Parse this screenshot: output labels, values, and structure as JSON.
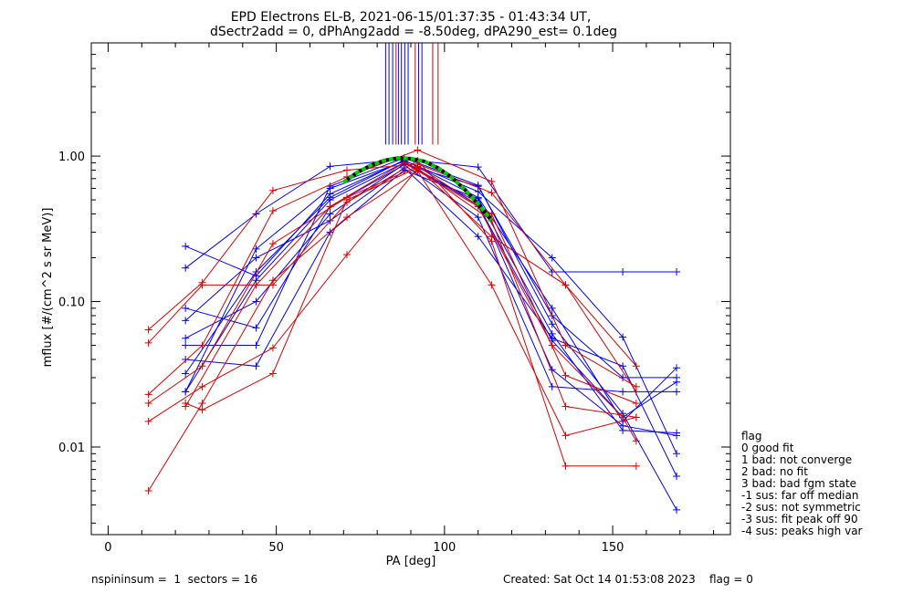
{
  "chart_data": {
    "type": "scatter",
    "title_line1": "EPD Electrons EL-B, 2021-06-15/01:37:35 - 01:43:34 UT,",
    "title_line2": "dSectr2add = 0, dPhAng2add = -8.50deg, dPA290_est=   0.1deg",
    "xlabel": "PA [deg]",
    "ylabel": "mflux [#/(cm^2 s sr MeV)]",
    "xlim": [
      -5,
      185
    ],
    "ylim": [
      0.0025,
      6.0
    ],
    "y_scale": "log",
    "x_ticks": [
      0,
      50,
      100,
      150
    ],
    "x_tick_labels": [
      "0",
      "50",
      "100",
      "150"
    ],
    "y_ticks": [
      0.01,
      0.1,
      1.0
    ],
    "y_tick_labels": [
      "0.01",
      "0.10",
      "1.00"
    ],
    "colors": {
      "blue": "#0000ff",
      "red": "#dd0000",
      "fit_green": "#00cc00",
      "fit_black": "#000000"
    },
    "series": [
      {
        "color": "blue",
        "points": [
          [
            23,
            0.032
          ],
          [
            44,
            0.16
          ],
          [
            66,
            0.52
          ],
          [
            88,
            0.94
          ],
          [
            110,
            0.52
          ],
          [
            132,
            0.09
          ],
          [
            153,
            0.015
          ],
          [
            169,
            0.035
          ]
        ]
      },
      {
        "color": "blue",
        "points": [
          [
            23,
            0.024
          ],
          [
            44,
            0.23
          ],
          [
            66,
            0.6
          ],
          [
            88,
            0.92
          ],
          [
            110,
            0.46
          ],
          [
            132,
            0.054
          ],
          [
            153,
            0.016
          ],
          [
            169,
            0.028
          ]
        ]
      },
      {
        "color": "blue",
        "points": [
          [
            23,
            0.024
          ],
          [
            44,
            0.14
          ],
          [
            66,
            0.5
          ],
          [
            88,
            0.9
          ],
          [
            110,
            0.48
          ],
          [
            132,
            0.034
          ],
          [
            153,
            0.014
          ],
          [
            169,
            0.012
          ]
        ]
      },
      {
        "color": "blue",
        "points": [
          [
            23,
            0.17
          ],
          [
            44,
            0.4
          ],
          [
            66,
            0.85
          ],
          [
            88,
            0.95
          ],
          [
            110,
            0.84
          ],
          [
            132,
            0.16
          ],
          [
            153,
            0.16
          ],
          [
            169,
            0.16
          ]
        ]
      },
      {
        "color": "blue",
        "points": [
          [
            23,
            0.24
          ],
          [
            44,
            0.15
          ],
          [
            66,
            0.55
          ],
          [
            88,
            0.93
          ],
          [
            110,
            0.57
          ],
          [
            132,
            0.2
          ],
          [
            153,
            0.057
          ],
          [
            169,
            0.009
          ]
        ]
      },
      {
        "color": "blue",
        "points": [
          [
            23,
            0.09
          ],
          [
            44,
            0.066
          ],
          [
            66,
            0.45
          ],
          [
            88,
            0.87
          ],
          [
            110,
            0.38
          ],
          [
            132,
            0.026
          ],
          [
            153,
            0.024
          ],
          [
            169,
            0.024
          ]
        ]
      },
      {
        "color": "blue",
        "points": [
          [
            23,
            0.074
          ],
          [
            44,
            0.2
          ],
          [
            66,
            0.36
          ],
          [
            88,
            0.83
          ],
          [
            110,
            0.28
          ],
          [
            132,
            0.056
          ],
          [
            153,
            0.036
          ],
          [
            169,
            0.0063
          ]
        ]
      },
      {
        "color": "blue",
        "points": [
          [
            23,
            0.05
          ],
          [
            44,
            0.05
          ],
          [
            66,
            0.62
          ],
          [
            88,
            0.97
          ],
          [
            110,
            0.63
          ],
          [
            132,
            0.07
          ],
          [
            153,
            0.017
          ],
          [
            169,
            0.0037
          ]
        ]
      },
      {
        "color": "blue",
        "points": [
          [
            23,
            0.04
          ],
          [
            44,
            0.036
          ],
          [
            66,
            0.3
          ],
          [
            88,
            0.8
          ],
          [
            110,
            0.51
          ],
          [
            132,
            0.06
          ],
          [
            153,
            0.013
          ],
          [
            169,
            0.0125
          ]
        ]
      },
      {
        "color": "blue",
        "points": [
          [
            23,
            0.056
          ],
          [
            44,
            0.1
          ],
          [
            66,
            0.4
          ],
          [
            88,
            0.88
          ],
          [
            110,
            0.62
          ],
          [
            132,
            0.08
          ],
          [
            153,
            0.03
          ],
          [
            169,
            0.03
          ]
        ]
      },
      {
        "color": "red",
        "points": [
          [
            12,
            0.064
          ],
          [
            28,
            0.135
          ],
          [
            49,
            0.58
          ],
          [
            71,
            0.8
          ],
          [
            92,
            0.88
          ],
          [
            114,
            0.56
          ],
          [
            136,
            0.13
          ],
          [
            157,
            0.036
          ]
        ]
      },
      {
        "color": "red",
        "points": [
          [
            12,
            0.052
          ],
          [
            28,
            0.13
          ],
          [
            49,
            0.13
          ],
          [
            71,
            0.48
          ],
          [
            92,
            0.93
          ],
          [
            114,
            0.26
          ],
          [
            136,
            0.0074
          ],
          [
            157,
            0.0074
          ]
        ]
      },
      {
        "color": "red",
        "points": [
          [
            12,
            0.023
          ],
          [
            28,
            0.05
          ],
          [
            49,
            0.42
          ],
          [
            71,
            0.72
          ],
          [
            92,
            1.1
          ],
          [
            114,
            0.67
          ],
          [
            136,
            0.05
          ],
          [
            157,
            0.026
          ]
        ]
      },
      {
        "color": "red",
        "points": [
          [
            12,
            0.02
          ],
          [
            28,
            0.036
          ],
          [
            49,
            0.25
          ],
          [
            71,
            0.52
          ],
          [
            92,
            0.85
          ],
          [
            114,
            0.4
          ],
          [
            136,
            0.031
          ],
          [
            157,
            0.02
          ]
        ]
      },
      {
        "color": "red",
        "points": [
          [
            12,
            0.005
          ],
          [
            28,
            0.02
          ],
          [
            49,
            0.14
          ],
          [
            71,
            0.38
          ],
          [
            92,
            0.79
          ],
          [
            114,
            0.13
          ],
          [
            136,
            0.012
          ],
          [
            157,
            0.016
          ]
        ]
      },
      {
        "color": "red",
        "points": [
          [
            12,
            0.015
          ],
          [
            28,
            0.026
          ],
          [
            49,
            0.048
          ],
          [
            71,
            0.21
          ],
          [
            92,
            0.82
          ],
          [
            114,
            0.36
          ],
          [
            136,
            0.019
          ],
          [
            157,
            0.016
          ]
        ]
      },
      {
        "color": "red",
        "points": [
          [
            23,
            0.019
          ],
          [
            44,
            0.13
          ],
          [
            66,
            0.45
          ],
          [
            88,
            0.9
          ],
          [
            110,
            0.45
          ],
          [
            132,
            0.05
          ],
          [
            153,
            0.016
          ],
          [
            157,
            0.011
          ]
        ]
      },
      {
        "color": "red",
        "points": [
          [
            23,
            0.02
          ],
          [
            28,
            0.018
          ],
          [
            49,
            0.032
          ],
          [
            71,
            0.5
          ],
          [
            92,
            0.83
          ],
          [
            114,
            0.28
          ],
          [
            136,
            0.13
          ],
          [
            157,
            0.024
          ]
        ]
      }
    ],
    "fit_curve": {
      "x": [
        70,
        74,
        78,
        82,
        86,
        90,
        94,
        98,
        102,
        106,
        110,
        114
      ],
      "y": [
        0.66,
        0.77,
        0.86,
        0.93,
        0.97,
        0.96,
        0.92,
        0.83,
        0.72,
        0.59,
        0.47,
        0.36
      ]
    },
    "peak_lines": [
      {
        "x": 82.5,
        "color": "blue"
      },
      {
        "x": 83.5,
        "color": "blue"
      },
      {
        "x": 84.6,
        "color": "blue"
      },
      {
        "x": 85.6,
        "color": "red"
      },
      {
        "x": 86.3,
        "color": "blue"
      },
      {
        "x": 87.2,
        "color": "blue"
      },
      {
        "x": 88.2,
        "color": "blue"
      },
      {
        "x": 89.2,
        "color": "blue"
      },
      {
        "x": 91.3,
        "color": "red"
      },
      {
        "x": 92.3,
        "color": "blue"
      },
      {
        "x": 93.3,
        "color": "blue"
      },
      {
        "x": 96.5,
        "color": "red"
      },
      {
        "x": 98.1,
        "color": "red"
      }
    ],
    "legend_title": "flag",
    "legend_items": [
      " 0 good fit",
      " 1 bad: not converge",
      " 2 bad: no fit",
      " 3 bad: bad fgm state",
      "-1 sus: far off median",
      "-2 sus: not symmetric",
      "-3 sus: fit peak off 90",
      "-4 sus: peaks high var"
    ],
    "footer_left": "nspininsum =  1  sectors = 16",
    "footer_right": "Created: Sat Oct 14 01:53:08 2023    flag = 0"
  }
}
